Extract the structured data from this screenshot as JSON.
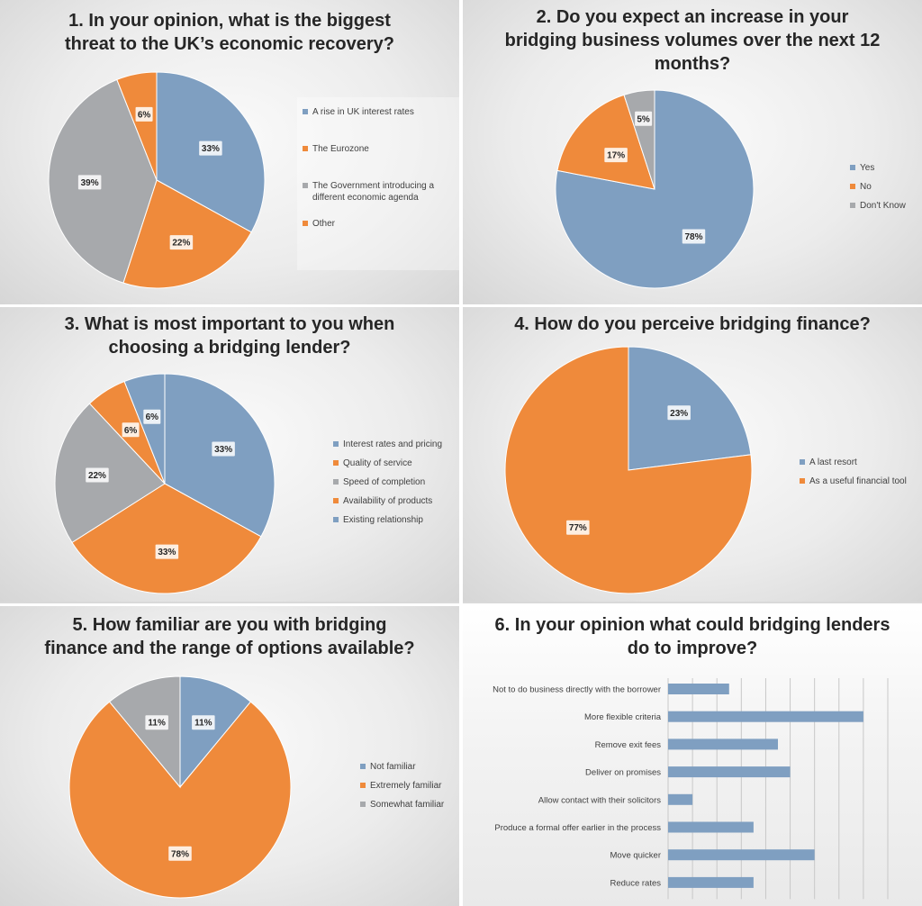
{
  "colors": {
    "blue": "#7f9fc1",
    "orange": "#ef8a3b",
    "gray": "#a7a9ac"
  },
  "chart_data": [
    {
      "type": "pie",
      "title": "1. In your opinion, what is the biggest\nthreat to the UK’s economic recovery?",
      "slices": [
        {
          "label": "A rise in UK interest rates",
          "value": 33,
          "display": "33%",
          "color": "blue"
        },
        {
          "label": "The Eurozone",
          "value": 22,
          "display": "22%",
          "color": "orange"
        },
        {
          "label": "The Government introducing a different economic agenda",
          "value": 39,
          "display": "39%",
          "color": "gray"
        },
        {
          "label": "Other",
          "value": 6,
          "display": "6%",
          "color": "orange"
        }
      ],
      "legend": [
        "A rise in UK interest rates",
        "The Eurozone",
        "The Government introducing a different economic agenda",
        "Other"
      ],
      "legend_colors": [
        "blue",
        "orange",
        "gray",
        "orange"
      ]
    },
    {
      "type": "pie",
      "title": "2. Do you expect an increase in your\nbridging business volumes over the next 12\nmonths?",
      "slices": [
        {
          "label": "Yes",
          "value": 78,
          "display": "78%",
          "color": "blue"
        },
        {
          "label": "No",
          "value": 17,
          "display": "17%",
          "color": "orange"
        },
        {
          "label": "Don't Know",
          "value": 5,
          "display": "5%",
          "color": "gray"
        }
      ],
      "legend": [
        "Yes",
        "No",
        "Don't Know"
      ],
      "legend_colors": [
        "blue",
        "orange",
        "gray"
      ]
    },
    {
      "type": "pie",
      "title": "3. What is most important to you when\nchoosing a bridging lender?",
      "slices": [
        {
          "label": "Interest rates and pricing",
          "value": 33,
          "display": "33%",
          "color": "blue"
        },
        {
          "label": "Quality of service",
          "value": 33,
          "display": "33%",
          "color": "orange"
        },
        {
          "label": "Speed of completion",
          "value": 22,
          "display": "22%",
          "color": "gray"
        },
        {
          "label": "Availability of products",
          "value": 6,
          "display": "6%",
          "color": "orange"
        },
        {
          "label": "Existing relationship",
          "value": 6,
          "display": "6%",
          "color": "blue"
        }
      ],
      "legend": [
        "Interest rates and pricing",
        "Quality of service",
        "Speed of completion",
        "Availability of products",
        "Existing relationship"
      ],
      "legend_colors": [
        "blue",
        "orange",
        "gray",
        "orange",
        "blue"
      ]
    },
    {
      "type": "pie",
      "title": "4. How do you perceive bridging finance?",
      "slices": [
        {
          "label": "A last resort",
          "value": 23,
          "display": "23%",
          "color": "blue"
        },
        {
          "label": "As a useful financial tool",
          "value": 77,
          "display": "77%",
          "color": "orange"
        }
      ],
      "legend": [
        "A last resort",
        "As a useful financial tool"
      ],
      "legend_colors": [
        "blue",
        "orange"
      ]
    },
    {
      "type": "pie",
      "title": "5. How familiar are you with bridging\nfinance and the range of options available?",
      "slices": [
        {
          "label": "Not familiar",
          "value": 11,
          "display": "11%",
          "color": "blue"
        },
        {
          "label": "Extremely familiar",
          "value": 78,
          "display": "78%",
          "color": "orange"
        },
        {
          "label": "Somewhat familiar",
          "value": 11,
          "display": "11%",
          "color": "gray"
        }
      ],
      "legend": [
        "Not familiar",
        "Extremely familiar",
        "Somewhat familiar"
      ],
      "legend_colors": [
        "blue",
        "orange",
        "gray"
      ]
    },
    {
      "type": "bar",
      "orientation": "horizontal",
      "title": "6. In your opinion  what could bridging lenders\ndo to improve?",
      "categories": [
        "Not to do business directly with the borrower",
        "More flexible criteria",
        "Remove exit fees",
        "Deliver on promises",
        "Allow contact with their solicitors",
        "Produce a formal offer earlier in the process",
        "Move quicker",
        "Reduce rates"
      ],
      "values": [
        2.5,
        8,
        4.5,
        5,
        1,
        3.5,
        6,
        3.5
      ],
      "xlim": [
        0,
        9
      ],
      "grid": true
    }
  ]
}
